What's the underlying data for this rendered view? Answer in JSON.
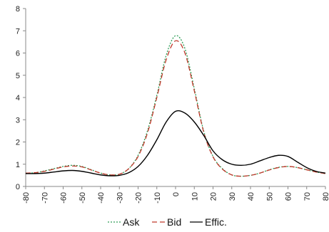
{
  "chart_data": {
    "type": "line",
    "title": "",
    "xlabel": "",
    "ylabel": "",
    "xlim": [
      -80,
      80
    ],
    "ylim": [
      0,
      8
    ],
    "x_ticks": [
      "-80",
      "-70",
      "-60",
      "-50",
      "-40",
      "-30",
      "-20",
      "-10",
      "0",
      "10",
      "20",
      "30",
      "40",
      "50",
      "60",
      "70",
      "80"
    ],
    "y_ticks": [
      "0",
      "1",
      "2",
      "3",
      "4",
      "5",
      "6",
      "7",
      "8"
    ],
    "grid": false,
    "legend_position": "bottom",
    "x": [
      -80,
      -75,
      -70,
      -65,
      -60,
      -55,
      -50,
      -45,
      -40,
      -35,
      -30,
      -25,
      -20,
      -15,
      -10,
      -5,
      0,
      5,
      10,
      15,
      20,
      25,
      30,
      35,
      40,
      45,
      50,
      55,
      60,
      65,
      70,
      75,
      80
    ],
    "series": [
      {
        "name": "Ask",
        "color": "#2e9e57",
        "dash": "dotted",
        "values": [
          0.6,
          0.62,
          0.7,
          0.8,
          0.9,
          0.95,
          0.9,
          0.75,
          0.6,
          0.52,
          0.55,
          0.8,
          1.4,
          2.5,
          4.1,
          5.9,
          6.78,
          6.2,
          4.4,
          2.5,
          1.35,
          0.8,
          0.52,
          0.46,
          0.5,
          0.6,
          0.75,
          0.86,
          0.9,
          0.85,
          0.75,
          0.65,
          0.58
        ]
      },
      {
        "name": "Bid",
        "color": "#c0392b",
        "dash": "dashed",
        "values": [
          0.6,
          0.62,
          0.68,
          0.78,
          0.88,
          0.92,
          0.88,
          0.74,
          0.6,
          0.52,
          0.55,
          0.8,
          1.35,
          2.4,
          4.0,
          5.7,
          6.55,
          6.0,
          4.3,
          2.45,
          1.33,
          0.78,
          0.52,
          0.46,
          0.5,
          0.6,
          0.74,
          0.85,
          0.9,
          0.85,
          0.75,
          0.65,
          0.58
        ]
      },
      {
        "name": "Effic.",
        "color": "#000000",
        "dash": "solid",
        "values": [
          0.58,
          0.58,
          0.6,
          0.65,
          0.7,
          0.72,
          0.68,
          0.6,
          0.52,
          0.48,
          0.5,
          0.62,
          0.9,
          1.4,
          2.1,
          2.9,
          3.38,
          3.3,
          2.9,
          2.3,
          1.6,
          1.2,
          1.0,
          0.95,
          1.0,
          1.15,
          1.3,
          1.4,
          1.35,
          1.1,
          0.85,
          0.68,
          0.6
        ]
      }
    ]
  }
}
